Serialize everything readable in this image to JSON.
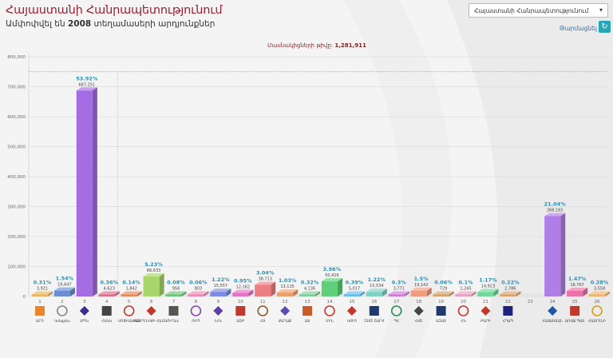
{
  "header": {
    "title": "Հայաստանի Հանրապետությունում",
    "subtitle_prefix": "Ամփոփվել են",
    "subtitle_count": "2008",
    "subtitle_suffix": "տեղամասերի արդյունքներ"
  },
  "region_select": {
    "value": "Հայաստանի Հանրապետությունում"
  },
  "refresh": {
    "label": "Թարմացնել"
  },
  "chart_data": {
    "type": "bar",
    "title": "",
    "xlabel": "",
    "ylabel": "",
    "voters_label": "Մասնակիցների թիվը:",
    "voters_value": "1,281,911",
    "ylim": [
      0,
      800000
    ],
    "yticks": [
      "0",
      "100,000",
      "200,000",
      "300,000",
      "400,000",
      "500,000",
      "600,000",
      "700,000",
      "800,000"
    ],
    "reference_line": 750000,
    "categories": [
      "1",
      "2",
      "3",
      "4",
      "5",
      "6",
      "7",
      "8",
      "9",
      "10",
      "11",
      "12",
      "13",
      "14",
      "15",
      "16",
      "17",
      "18",
      "19",
      "20",
      "21",
      "22",
      "23",
      "24",
      "25",
      "26"
    ],
    "values": [
      3921,
      19647,
      687251,
      4623,
      1842,
      66633,
      956,
      803,
      15557,
      12162,
      38713,
      13115,
      4136,
      50416,
      5017,
      15534,
      3771,
      19142,
      729,
      1245,
      14923,
      2786,
      0,
      268165,
      18767,
      3558
    ],
    "value_labels": [
      "3,921",
      "19,647",
      "687,251",
      "4,623",
      "1,842",
      "66,633",
      "956",
      "803",
      "15,557",
      "12,162",
      "38,713",
      "13,115",
      "4,136",
      "50,416",
      "5,017",
      "15,534",
      "3,771",
      "19,142",
      "729",
      "1,245",
      "14,923",
      "2,786",
      "",
      "268,165",
      "18,767",
      "3,558"
    ],
    "percents": [
      "0.31%",
      "1.54%",
      "53.92%",
      "0.36%",
      "0.14%",
      "5.23%",
      "0.08%",
      "0.06%",
      "1.22%",
      "0.95%",
      "3.04%",
      "1.03%",
      "0.32%",
      "3.96%",
      "0.39%",
      "1.22%",
      "0.3%",
      "1.5%",
      "0.06%",
      "0.1%",
      "1.17%",
      "0.22%",
      "",
      "21.04%",
      "1.47%",
      "0.28%"
    ],
    "party_names": [
      "ԱՐՈ",
      "Կոնգրես",
      "ՔՊԿ",
      "ՀԱԿԿ",
      "ՍՈՑԻԱԼԻՍՏ",
      "ՀԱՅՐԵՆԻՔԻ ՀԱՄԱՐ",
      "ԻՐԱՎ",
      "ՌԵՊ",
      "ԼՀԿ",
      "ԱՇԲ",
      "ՀՅ",
      "ՔԱՂԱՔ",
      "ԱՅ",
      "ՄԻՆ",
      "ԿՈՒՌ",
      "5165 ՇԱՐԺ",
      "ՊՀ",
      "ՀԺՇ",
      "ԱԶԱՏ",
      "ՀԿ",
      "ԲԱՐԻ",
      "ՀԴԱՊ",
      "",
      "ՀԱՅԱՍՏԱՆ",
      "ԱՌԱՋ ՊԱՏ",
      "ՀԱՅՐԵՆԻ"
    ],
    "colors": [
      "#e9b65a",
      "#6c8fd4",
      "#a46de3",
      "#d9708f",
      "#e5885a",
      "#a8d66b",
      "#6ec17b",
      "#f089b8",
      "#7c8ce2",
      "#e472c7",
      "#ec7f86",
      "#eea06a",
      "#7ecf95",
      "#5fcf7a",
      "#62bde8",
      "#7fd2c2",
      "#cf7ad9",
      "#f19b7f",
      "#d4a26a",
      "#e6a0c0",
      "#72d79a",
      "#d8a36e",
      "#7aa8e3",
      "#b07ee7",
      "#eb72a6",
      "#f0b36a"
    ],
    "logo_colors": [
      "#e8852a",
      "#888888",
      "#3a2f8f",
      "#444444",
      "#c0392b",
      "#c0392b",
      "#555555",
      "#8e44ad",
      "#5b3fa6",
      "#c0392b",
      "#8b5a2b",
      "#5b4caf",
      "#c75b2a",
      "#c0392b",
      "#c0392b",
      "#1f3a6e",
      "#2e8b57",
      "#444444",
      "#1f3a6e",
      "#c0392b",
      "#c0392b",
      "#1a237e",
      "#777777",
      "#2255aa",
      "#c0392b",
      "#d4a017"
    ]
  }
}
